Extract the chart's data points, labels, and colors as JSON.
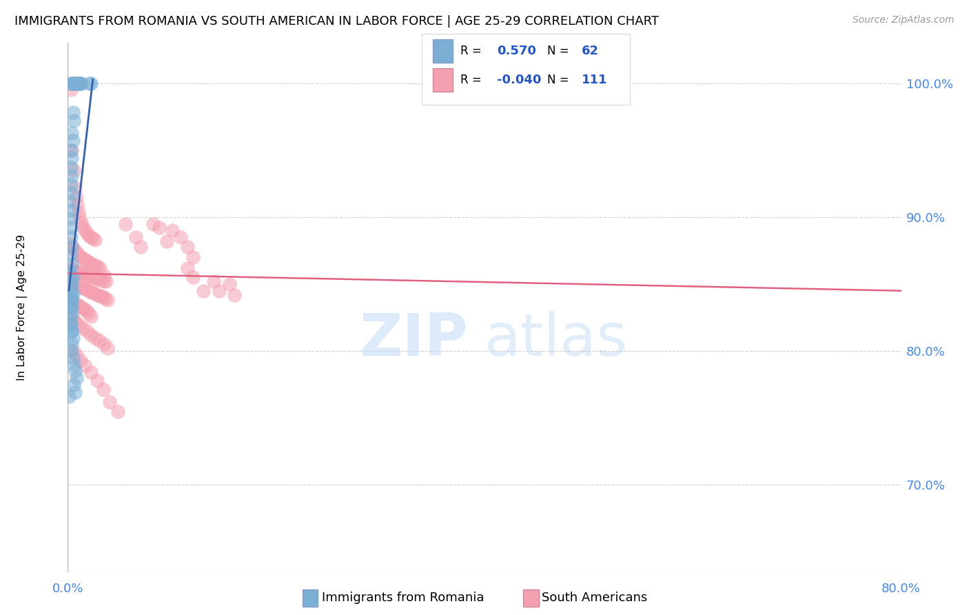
{
  "title": "IMMIGRANTS FROM ROMANIA VS SOUTH AMERICAN IN LABOR FORCE | AGE 25-29 CORRELATION CHART",
  "source": "Source: ZipAtlas.com",
  "ylabel": "In Labor Force | Age 25-29",
  "xlim": [
    0.0,
    0.8
  ],
  "ylim": [
    0.635,
    1.03
  ],
  "yticks": [
    0.7,
    0.8,
    0.9,
    1.0
  ],
  "ytick_labels": [
    "70.0%",
    "80.0%",
    "90.0%",
    "100.0%"
  ],
  "romania_color": "#7bafd4",
  "south_color": "#f4a0b0",
  "romania_line_color": "#3060b0",
  "south_line_color": "#e06080",
  "romania_points": [
    [
      0.003,
      1.0
    ],
    [
      0.004,
      1.0
    ],
    [
      0.005,
      1.0
    ],
    [
      0.006,
      1.0
    ],
    [
      0.007,
      1.0
    ],
    [
      0.008,
      1.0
    ],
    [
      0.009,
      1.0
    ],
    [
      0.01,
      1.0
    ],
    [
      0.011,
      1.0
    ],
    [
      0.012,
      1.0
    ],
    [
      0.013,
      1.0
    ],
    [
      0.021,
      1.0
    ],
    [
      0.022,
      1.0
    ],
    [
      0.005,
      0.978
    ],
    [
      0.006,
      0.972
    ],
    [
      0.004,
      0.963
    ],
    [
      0.005,
      0.957
    ],
    [
      0.003,
      0.95
    ],
    [
      0.004,
      0.944
    ],
    [
      0.003,
      0.937
    ],
    [
      0.004,
      0.931
    ],
    [
      0.003,
      0.924
    ],
    [
      0.004,
      0.918
    ],
    [
      0.002,
      0.912
    ],
    [
      0.003,
      0.905
    ],
    [
      0.002,
      0.899
    ],
    [
      0.003,
      0.892
    ],
    [
      0.003,
      0.885
    ],
    [
      0.004,
      0.878
    ],
    [
      0.003,
      0.872
    ],
    [
      0.004,
      0.865
    ],
    [
      0.002,
      0.859
    ],
    [
      0.003,
      0.853
    ],
    [
      0.003,
      0.847
    ],
    [
      0.004,
      0.84
    ],
    [
      0.003,
      0.834
    ],
    [
      0.004,
      0.827
    ],
    [
      0.002,
      0.86
    ],
    [
      0.005,
      0.855
    ],
    [
      0.004,
      0.849
    ],
    [
      0.005,
      0.843
    ],
    [
      0.003,
      0.838
    ],
    [
      0.004,
      0.832
    ],
    [
      0.002,
      0.826
    ],
    [
      0.003,
      0.82
    ],
    [
      0.004,
      0.815
    ],
    [
      0.005,
      0.81
    ],
    [
      0.004,
      0.805
    ],
    [
      0.003,
      0.8
    ],
    [
      0.005,
      0.795
    ],
    [
      0.006,
      0.79
    ],
    [
      0.007,
      0.785
    ],
    [
      0.008,
      0.78
    ],
    [
      0.006,
      0.775
    ],
    [
      0.007,
      0.769
    ],
    [
      0.003,
      0.82
    ],
    [
      0.004,
      0.815
    ],
    [
      0.001,
      0.766
    ],
    [
      0.003,
      0.84
    ],
    [
      0.004,
      0.837
    ],
    [
      0.003,
      0.833
    ]
  ],
  "south_points": [
    [
      0.003,
      0.995
    ],
    [
      0.004,
      0.95
    ],
    [
      0.006,
      0.935
    ],
    [
      0.007,
      0.922
    ],
    [
      0.008,
      0.915
    ],
    [
      0.009,
      0.909
    ],
    [
      0.01,
      0.904
    ],
    [
      0.011,
      0.9
    ],
    [
      0.013,
      0.896
    ],
    [
      0.014,
      0.893
    ],
    [
      0.016,
      0.89
    ],
    [
      0.018,
      0.888
    ],
    [
      0.02,
      0.886
    ],
    [
      0.022,
      0.885
    ],
    [
      0.024,
      0.884
    ],
    [
      0.026,
      0.883
    ],
    [
      0.003,
      0.88
    ],
    [
      0.005,
      0.877
    ],
    [
      0.007,
      0.875
    ],
    [
      0.009,
      0.873
    ],
    [
      0.011,
      0.871
    ],
    [
      0.013,
      0.87
    ],
    [
      0.015,
      0.869
    ],
    [
      0.017,
      0.868
    ],
    [
      0.019,
      0.867
    ],
    [
      0.021,
      0.866
    ],
    [
      0.023,
      0.865
    ],
    [
      0.025,
      0.864
    ],
    [
      0.027,
      0.864
    ],
    [
      0.029,
      0.863
    ],
    [
      0.031,
      0.862
    ],
    [
      0.003,
      0.862
    ],
    [
      0.005,
      0.861
    ],
    [
      0.007,
      0.86
    ],
    [
      0.009,
      0.86
    ],
    [
      0.011,
      0.859
    ],
    [
      0.013,
      0.858
    ],
    [
      0.015,
      0.858
    ],
    [
      0.017,
      0.857
    ],
    [
      0.019,
      0.856
    ],
    [
      0.021,
      0.856
    ],
    [
      0.023,
      0.855
    ],
    [
      0.025,
      0.855
    ],
    [
      0.027,
      0.854
    ],
    [
      0.029,
      0.854
    ],
    [
      0.031,
      0.853
    ],
    [
      0.033,
      0.853
    ],
    [
      0.035,
      0.852
    ],
    [
      0.037,
      0.852
    ],
    [
      0.004,
      0.851
    ],
    [
      0.006,
      0.85
    ],
    [
      0.008,
      0.849
    ],
    [
      0.01,
      0.849
    ],
    [
      0.012,
      0.848
    ],
    [
      0.014,
      0.847
    ],
    [
      0.016,
      0.847
    ],
    [
      0.018,
      0.846
    ],
    [
      0.02,
      0.845
    ],
    [
      0.022,
      0.844
    ],
    [
      0.024,
      0.844
    ],
    [
      0.026,
      0.843
    ],
    [
      0.028,
      0.842
    ],
    [
      0.03,
      0.841
    ],
    [
      0.032,
      0.841
    ],
    [
      0.034,
      0.84
    ],
    [
      0.036,
      0.839
    ],
    [
      0.038,
      0.838
    ],
    [
      0.002,
      0.838
    ],
    [
      0.004,
      0.837
    ],
    [
      0.006,
      0.836
    ],
    [
      0.008,
      0.835
    ],
    [
      0.01,
      0.834
    ],
    [
      0.012,
      0.833
    ],
    [
      0.014,
      0.832
    ],
    [
      0.016,
      0.831
    ],
    [
      0.018,
      0.83
    ],
    [
      0.02,
      0.828
    ],
    [
      0.022,
      0.826
    ],
    [
      0.004,
      0.825
    ],
    [
      0.006,
      0.823
    ],
    [
      0.008,
      0.821
    ],
    [
      0.011,
      0.819
    ],
    [
      0.014,
      0.817
    ],
    [
      0.018,
      0.815
    ],
    [
      0.022,
      0.812
    ],
    [
      0.026,
      0.81
    ],
    [
      0.03,
      0.808
    ],
    [
      0.035,
      0.805
    ],
    [
      0.038,
      0.802
    ],
    [
      0.005,
      0.8
    ],
    [
      0.008,
      0.797
    ],
    [
      0.012,
      0.793
    ],
    [
      0.016,
      0.789
    ],
    [
      0.022,
      0.784
    ],
    [
      0.028,
      0.778
    ],
    [
      0.034,
      0.771
    ],
    [
      0.04,
      0.762
    ],
    [
      0.048,
      0.755
    ],
    [
      0.004,
      0.838
    ],
    [
      0.035,
      0.856
    ],
    [
      0.055,
      0.895
    ],
    [
      0.065,
      0.885
    ],
    [
      0.07,
      0.878
    ],
    [
      0.082,
      0.895
    ],
    [
      0.088,
      0.892
    ],
    [
      0.095,
      0.882
    ],
    [
      0.1,
      0.89
    ],
    [
      0.108,
      0.885
    ],
    [
      0.115,
      0.878
    ],
    [
      0.12,
      0.87
    ],
    [
      0.115,
      0.862
    ],
    [
      0.12,
      0.855
    ],
    [
      0.13,
      0.845
    ],
    [
      0.14,
      0.852
    ],
    [
      0.145,
      0.845
    ],
    [
      0.155,
      0.85
    ],
    [
      0.16,
      0.842
    ]
  ]
}
